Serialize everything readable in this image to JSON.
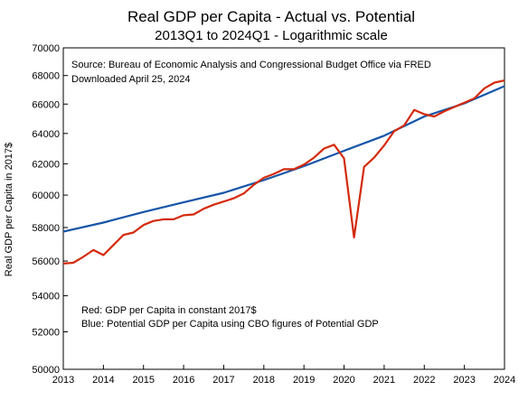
{
  "chart_data": {
    "type": "line",
    "title": "Real GDP per Capita - Actual vs. Potential",
    "subtitle": "2013Q1 to 2024Q1 -  Logarithmic scale",
    "ylabel": "Real GDP per Capita in 2017$",
    "xlabel": "",
    "y_scale": "log",
    "ylim": [
      50000,
      70000
    ],
    "xlim": [
      2013,
      2024
    ],
    "grid": false,
    "x_ticks": [
      2013,
      2014,
      2015,
      2016,
      2017,
      2018,
      2019,
      2020,
      2021,
      2022,
      2023,
      2024
    ],
    "y_ticks": [
      50000,
      52000,
      54000,
      56000,
      58000,
      60000,
      62000,
      64000,
      66000,
      68000,
      70000
    ],
    "source_note": {
      "line1": "Source:  Bureau of Economic Analysis and Congressional Budget Office via FRED",
      "line2": "Downloaded April 25, 2024"
    },
    "legend_note": {
      "line1": "Red:  GDP per Capita in constant 2017$",
      "line2": "Blue:  Potential GDP per Capita using CBO figures of Potential GDP"
    },
    "colors": {
      "actual": "#d42a0c",
      "potential": "#1555a8"
    },
    "series": [
      {
        "key": "actual",
        "x": [
          2013.0,
          2013.25,
          2013.5,
          2013.75,
          2014.0,
          2014.25,
          2014.5,
          2014.75,
          2015.0,
          2015.25,
          2015.5,
          2015.75,
          2016.0,
          2016.25,
          2016.5,
          2016.75,
          2017.0,
          2017.25,
          2017.5,
          2017.75,
          2018.0,
          2018.25,
          2018.5,
          2018.75,
          2019.0,
          2019.25,
          2019.5,
          2019.75,
          2020.0,
          2020.25,
          2020.5,
          2020.75,
          2021.0,
          2021.25,
          2021.5,
          2021.75,
          2022.0,
          2022.25,
          2022.5,
          2022.75,
          2023.0,
          2023.25,
          2023.5,
          2023.75,
          2024.0
        ],
        "values": [
          55850,
          55900,
          56250,
          56650,
          56350,
          56950,
          57550,
          57700,
          58150,
          58400,
          58500,
          58500,
          58750,
          58800,
          59150,
          59400,
          59600,
          59800,
          60100,
          60650,
          61100,
          61350,
          61650,
          61650,
          61950,
          62400,
          63000,
          63250,
          62350,
          57400,
          61800,
          62400,
          63200,
          64150,
          64550,
          65600,
          65300,
          65150,
          65500,
          65800,
          66100,
          66400,
          67100,
          67500,
          67650
        ]
      },
      {
        "key": "potential",
        "x": [
          2013.0,
          2014.0,
          2015.0,
          2016.0,
          2017.0,
          2018.0,
          2019.0,
          2020.0,
          2021.0,
          2022.0,
          2023.0,
          2024.0
        ],
        "values": [
          57750,
          58300,
          58950,
          59550,
          60150,
          60950,
          61850,
          62850,
          63850,
          65150,
          66050,
          67250
        ]
      }
    ]
  }
}
